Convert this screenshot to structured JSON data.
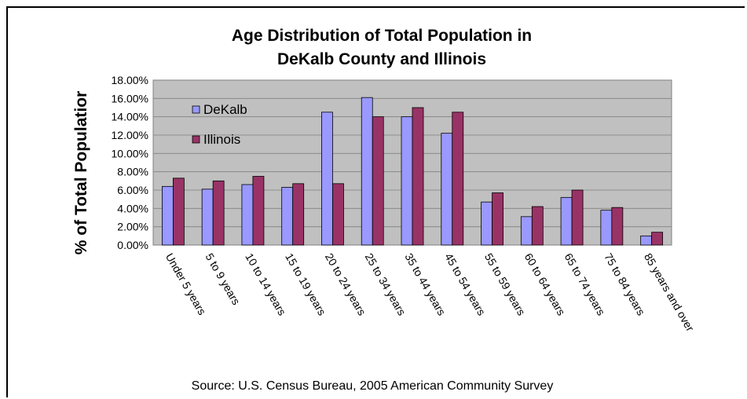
{
  "chart_data": {
    "type": "bar",
    "title": [
      "Age Distribution of Total Population in",
      "DeKalb County and Illinois"
    ],
    "ylabel": "% of Total Populatior",
    "xlabel": "",
    "ylim": [
      0,
      18
    ],
    "yticks": [
      "0.00%",
      "2.00%",
      "4.00%",
      "6.00%",
      "8.00%",
      "10.00%",
      "12.00%",
      "14.00%",
      "16.00%",
      "18.00%"
    ],
    "grid": true,
    "legend_position": "top-left",
    "categories": [
      "Under 5 years",
      "5 to 9 years",
      "10 to 14 years",
      "15 to 19 years",
      "20 to 24 years",
      "25 to 34 years",
      "35 to 44 years",
      "45 to 54 years",
      "55 to 59 years",
      "60 to 64 years",
      "65 to 74 years",
      "75 to 84 years",
      "85 years and over"
    ],
    "series": [
      {
        "name": "DeKalb",
        "color": "#9999ff",
        "values": [
          6.4,
          6.1,
          6.6,
          6.3,
          14.5,
          16.1,
          14.0,
          12.2,
          4.7,
          3.1,
          5.2,
          3.8,
          1.0
        ]
      },
      {
        "name": "Illinois",
        "color": "#993366",
        "values": [
          7.3,
          7.0,
          7.5,
          6.7,
          6.7,
          14.0,
          15.0,
          14.5,
          5.7,
          4.2,
          6.0,
          4.1,
          1.4
        ]
      }
    ],
    "source": "Source: U.S. Census Bureau, 2005 American Community Survey",
    "colors": {
      "plot_bg": "#c0c0c0",
      "grid": "#808080"
    }
  }
}
